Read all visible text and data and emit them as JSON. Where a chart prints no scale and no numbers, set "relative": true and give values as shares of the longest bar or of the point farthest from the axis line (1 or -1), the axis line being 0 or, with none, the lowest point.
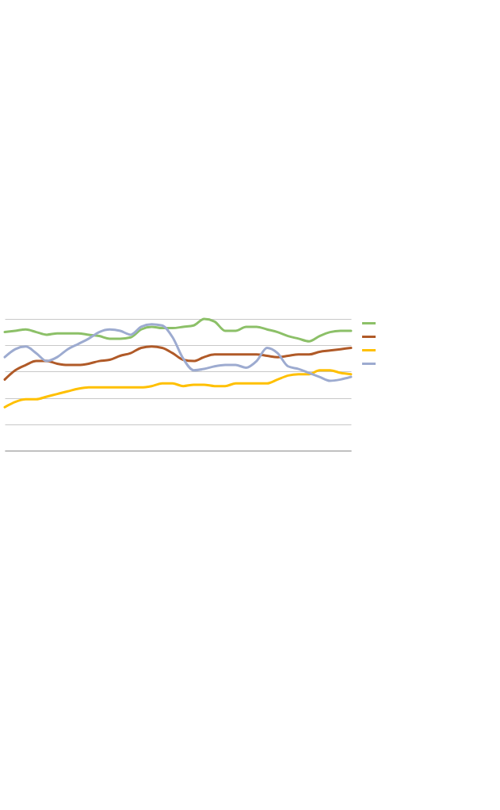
{
  "chart_data": {
    "type": "line",
    "relative": true,
    "grid": "y",
    "line_style": "solid",
    "marker": "none",
    "categories": [
      null,
      null,
      null,
      null,
      null,
      null,
      null,
      null,
      null,
      null,
      null,
      null,
      null,
      null,
      null,
      null,
      null,
      null,
      null,
      null,
      null,
      null,
      null,
      null,
      null,
      null,
      null,
      null,
      null,
      null,
      null,
      null,
      null,
      null
    ],
    "series": [
      {
        "color": "#8cc068",
        "values": [
          0.9,
          0.91,
          0.92,
          0.9,
          0.88,
          0.89,
          0.89,
          0.89,
          0.88,
          0.87,
          0.85,
          0.85,
          0.86,
          0.92,
          0.94,
          0.93,
          0.93,
          0.94,
          0.95,
          1.0,
          0.98,
          0.91,
          0.91,
          0.94,
          0.94,
          0.92,
          0.9,
          0.87,
          0.85,
          0.83,
          0.87,
          0.9,
          0.91,
          0.91
        ]
      },
      {
        "color": "#b05a28",
        "values": [
          0.54,
          0.61,
          0.65,
          0.68,
          0.68,
          0.66,
          0.65,
          0.65,
          0.66,
          0.68,
          0.69,
          0.72,
          0.74,
          0.78,
          0.79,
          0.78,
          0.74,
          0.69,
          0.68,
          0.71,
          0.73,
          0.73,
          0.73,
          0.73,
          0.73,
          0.72,
          0.71,
          0.72,
          0.73,
          0.73,
          0.75,
          0.76,
          0.77,
          0.78
        ]
      },
      {
        "color": "#ffc000",
        "values": [
          0.33,
          0.37,
          0.39,
          0.39,
          0.41,
          0.43,
          0.45,
          0.47,
          0.48,
          0.48,
          0.48,
          0.48,
          0.48,
          0.48,
          0.49,
          0.51,
          0.51,
          0.49,
          0.5,
          0.5,
          0.49,
          0.49,
          0.51,
          0.51,
          0.51,
          0.51,
          0.54,
          0.57,
          0.58,
          0.58,
          0.61,
          0.61,
          0.59,
          0.58
        ]
      },
      {
        "color": "#9dabd0",
        "values": [
          0.71,
          0.77,
          0.79,
          0.74,
          0.68,
          0.71,
          0.77,
          0.81,
          0.85,
          0.9,
          0.92,
          0.91,
          0.88,
          0.94,
          0.96,
          0.95,
          0.86,
          0.7,
          0.61,
          0.62,
          0.64,
          0.65,
          0.65,
          0.63,
          0.68,
          0.78,
          0.74,
          0.64,
          0.62,
          0.59,
          0.56,
          0.53,
          0.54,
          0.56
        ]
      }
    ]
  }
}
